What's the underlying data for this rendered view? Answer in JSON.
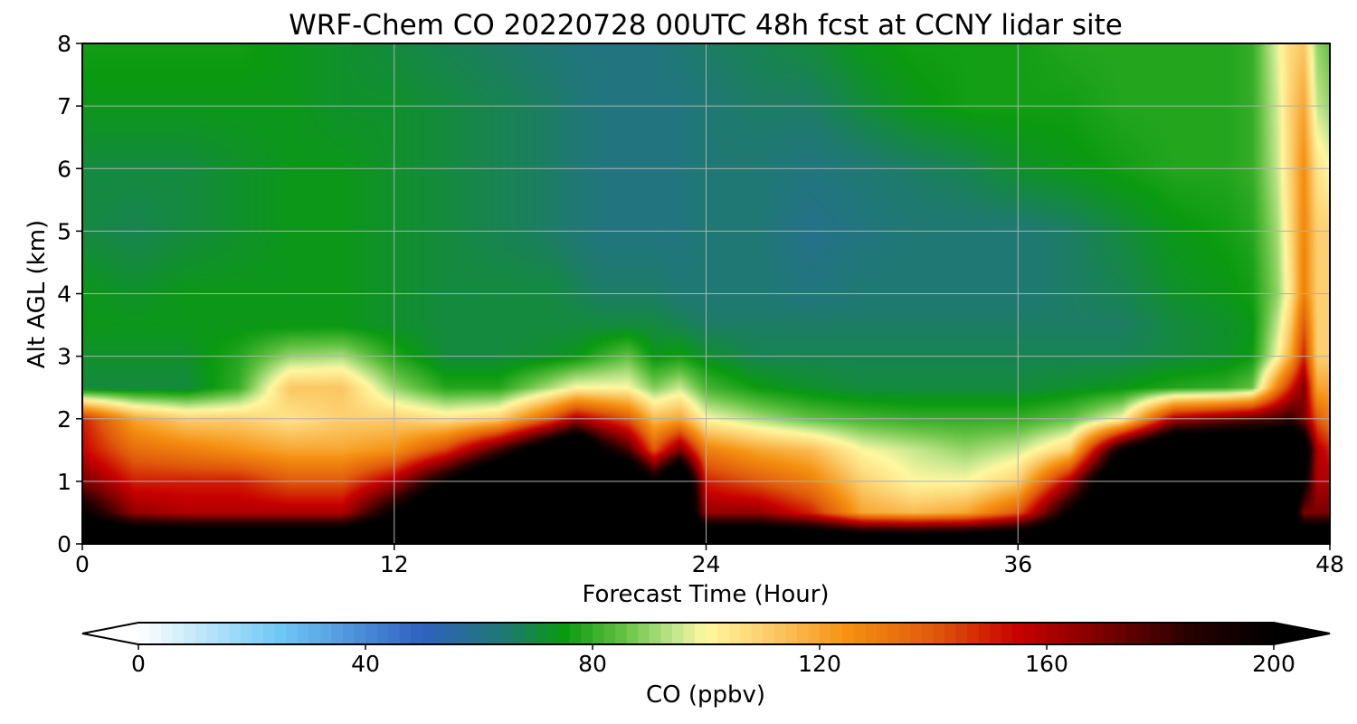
{
  "chart_data": {
    "type": "heatmap",
    "title": "WRF-Chem CO  20220728 00UTC 48h fcst at CCNY lidar site",
    "xlabel": "Forecast Time (Hour)",
    "ylabel": "Alt AGL (km)",
    "xlim": [
      0,
      48
    ],
    "ylim": [
      0,
      8
    ],
    "xticks": [
      "0",
      "12",
      "24",
      "36",
      "48"
    ],
    "yticks": [
      "0",
      "1",
      "2",
      "3",
      "4",
      "5",
      "6",
      "7",
      "8"
    ],
    "grid": true,
    "x": [
      0,
      2,
      4,
      6,
      8,
      10,
      12,
      14,
      16,
      18,
      19,
      20,
      21,
      22,
      23,
      24,
      26,
      28,
      30,
      32,
      34,
      36,
      38,
      40,
      42,
      44,
      45,
      46,
      46.5,
      47,
      47.5,
      48
    ],
    "y": [
      0,
      0.5,
      1,
      1.5,
      2,
      2.5,
      3,
      3.5,
      4,
      5,
      6,
      7,
      8
    ],
    "z": [
      [
        240,
        240,
        240,
        240,
        240,
        240,
        240,
        240,
        240,
        240,
        240,
        240,
        240,
        240,
        240,
        240,
        240,
        240,
        240,
        240,
        240,
        240,
        240,
        240,
        240,
        240,
        240,
        240,
        240,
        240,
        240,
        240
      ],
      [
        200,
        165,
        160,
        160,
        160,
        160,
        200,
        240,
        240,
        240,
        240,
        240,
        240,
        240,
        240,
        165,
        165,
        150,
        120,
        115,
        120,
        140,
        200,
        240,
        240,
        240,
        240,
        240,
        220,
        170,
        170,
        170
      ],
      [
        170,
        150,
        150,
        150,
        140,
        140,
        160,
        200,
        240,
        240,
        240,
        240,
        240,
        200,
        240,
        150,
        140,
        130,
        110,
        100,
        100,
        110,
        160,
        240,
        240,
        240,
        240,
        240,
        240,
        200,
        160,
        160
      ],
      [
        155,
        135,
        130,
        125,
        120,
        120,
        125,
        145,
        180,
        220,
        240,
        200,
        180,
        140,
        170,
        130,
        120,
        115,
        100,
        95,
        90,
        95,
        110,
        200,
        240,
        240,
        240,
        240,
        240,
        220,
        160,
        150
      ],
      [
        150,
        120,
        110,
        110,
        105,
        110,
        110,
        105,
        110,
        140,
        160,
        150,
        140,
        115,
        120,
        100,
        92,
        85,
        82,
        80,
        80,
        80,
        85,
        100,
        160,
        170,
        175,
        180,
        185,
        170,
        140,
        130
      ],
      [
        70,
        70,
        70,
        80,
        112,
        112,
        90,
        78,
        78,
        92,
        100,
        100,
        100,
        88,
        95,
        82,
        75,
        72,
        70,
        70,
        70,
        70,
        72,
        74,
        78,
        80,
        85,
        130,
        150,
        170,
        120,
        120
      ],
      [
        72,
        72,
        72,
        78,
        90,
        92,
        78,
        70,
        70,
        72,
        74,
        80,
        85,
        74,
        76,
        72,
        68,
        68,
        68,
        68,
        68,
        68,
        68,
        68,
        70,
        72,
        75,
        100,
        120,
        150,
        110,
        110
      ],
      [
        74,
        74,
        74,
        74,
        74,
        74,
        72,
        70,
        70,
        70,
        70,
        70,
        70,
        70,
        68,
        66,
        66,
        66,
        66,
        66,
        66,
        66,
        66,
        66,
        70,
        72,
        74,
        95,
        112,
        140,
        110,
        110
      ],
      [
        74,
        72,
        74,
        74,
        74,
        74,
        72,
        70,
        70,
        70,
        68,
        66,
        66,
        66,
        64,
        64,
        64,
        62,
        64,
        64,
        64,
        64,
        66,
        68,
        72,
        74,
        76,
        90,
        105,
        130,
        110,
        110
      ],
      [
        70,
        68,
        70,
        72,
        74,
        74,
        72,
        70,
        68,
        66,
        64,
        62,
        62,
        62,
        62,
        64,
        64,
        60,
        62,
        64,
        64,
        64,
        66,
        70,
        74,
        76,
        78,
        92,
        108,
        128,
        110,
        110
      ],
      [
        70,
        70,
        70,
        72,
        74,
        74,
        72,
        70,
        68,
        66,
        64,
        62,
        62,
        62,
        62,
        64,
        64,
        62,
        64,
        66,
        68,
        72,
        74,
        76,
        78,
        78,
        80,
        95,
        110,
        126,
        105,
        100
      ],
      [
        74,
        74,
        74,
        74,
        74,
        72,
        72,
        70,
        68,
        66,
        64,
        62,
        62,
        62,
        62,
        64,
        66,
        66,
        70,
        74,
        76,
        76,
        76,
        78,
        78,
        78,
        80,
        96,
        110,
        120,
        95,
        90
      ],
      [
        76,
        76,
        76,
        76,
        74,
        72,
        70,
        68,
        66,
        64,
        62,
        62,
        62,
        62,
        64,
        66,
        68,
        70,
        74,
        76,
        76,
        76,
        78,
        78,
        78,
        78,
        80,
        98,
        108,
        112,
        90,
        85
      ]
    ],
    "colorbar": {
      "label": "CO  (ppbv)",
      "min": 0,
      "max": 200,
      "extend": "both",
      "ticks": [
        "0",
        "40",
        "80",
        "120",
        "160",
        "200"
      ],
      "tick_values": [
        0,
        40,
        80,
        120,
        160,
        200
      ],
      "color_stops": [
        {
          "v": 0,
          "c": "#ffffff"
        },
        {
          "v": 25,
          "c": "#6ec8f5"
        },
        {
          "v": 50,
          "c": "#3060c0"
        },
        {
          "v": 65,
          "c": "#1e7a6e"
        },
        {
          "v": 75,
          "c": "#0a9a10"
        },
        {
          "v": 85,
          "c": "#60c040"
        },
        {
          "v": 95,
          "c": "#c8e890"
        },
        {
          "v": 100,
          "c": "#fff8a0"
        },
        {
          "v": 110,
          "c": "#fcd070"
        },
        {
          "v": 125,
          "c": "#f59010"
        },
        {
          "v": 140,
          "c": "#e05a0c"
        },
        {
          "v": 155,
          "c": "#c80000"
        },
        {
          "v": 170,
          "c": "#7a0000"
        },
        {
          "v": 185,
          "c": "#280000"
        },
        {
          "v": 200,
          "c": "#000000"
        }
      ],
      "under_color": "#ffffff",
      "over_color": "#000000"
    }
  }
}
